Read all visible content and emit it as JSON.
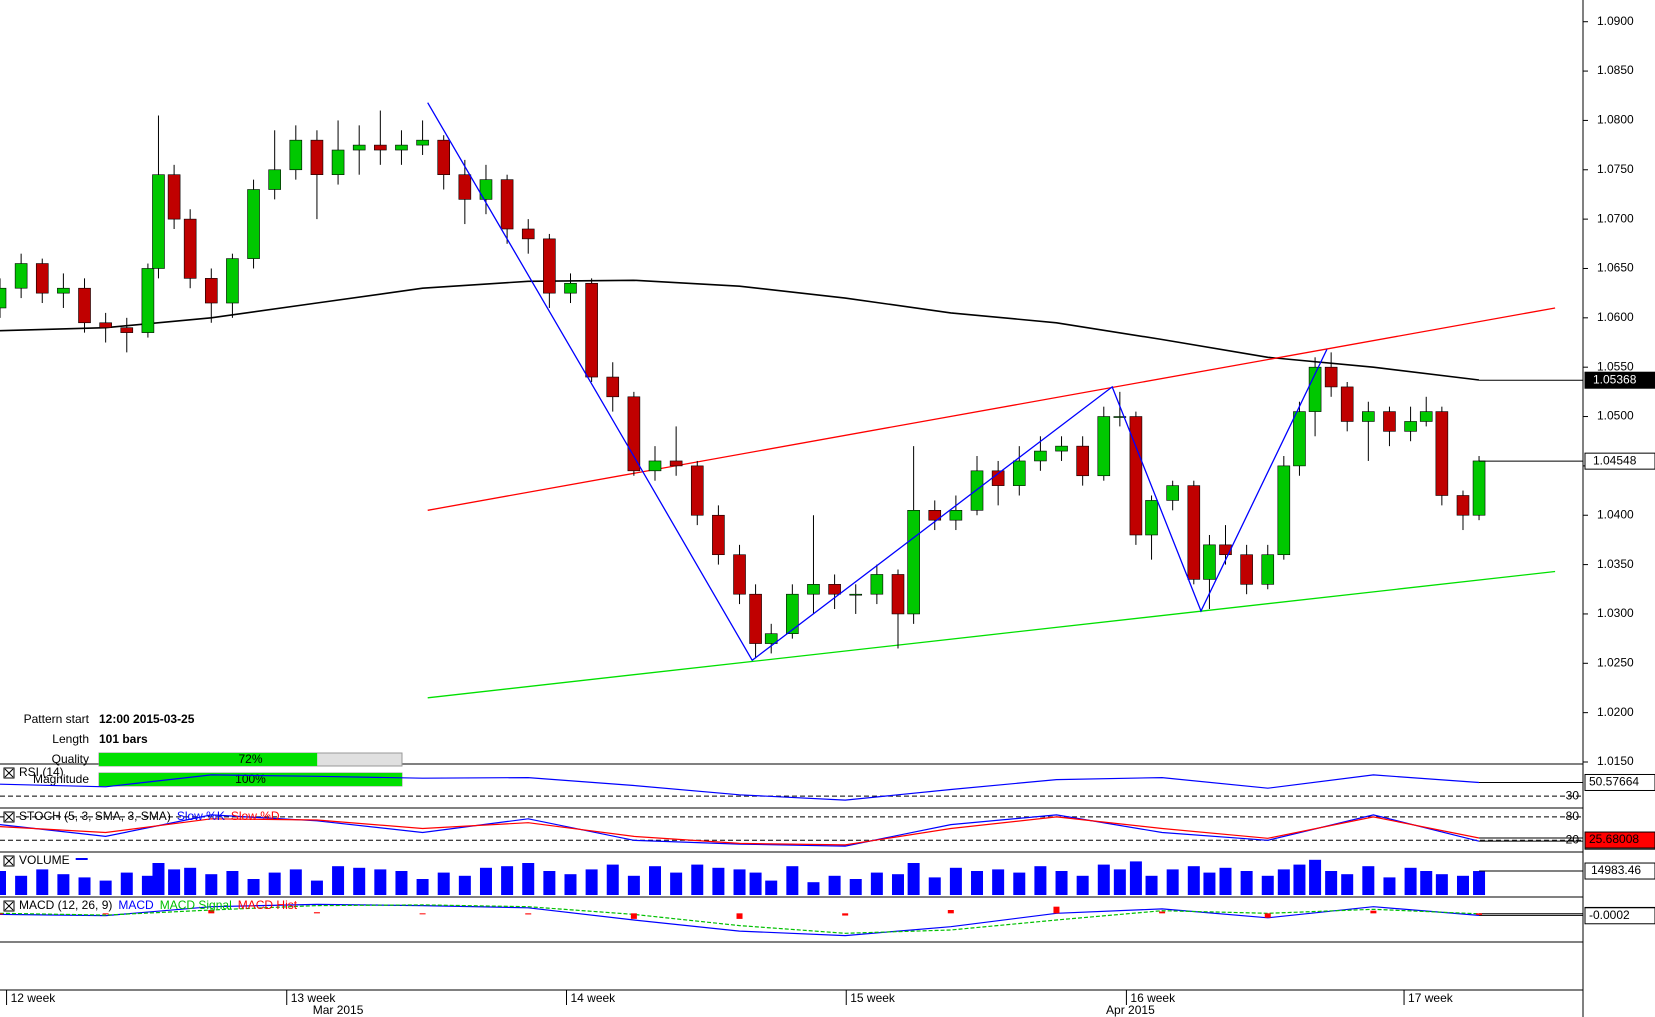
{
  "chart_data": {
    "type": "candlestick",
    "ylim": [
      1.015,
      1.0922
    ],
    "yticks": [
      {
        "value": 1.015,
        "label": "1.0150"
      },
      {
        "value": 1.02,
        "label": "1.0200"
      },
      {
        "value": 1.025,
        "label": "1.0250"
      },
      {
        "value": 1.03,
        "label": "1.0300"
      },
      {
        "value": 1.035,
        "label": "1.0350"
      },
      {
        "value": 1.04,
        "label": "1.0400"
      },
      {
        "value": 1.045,
        "label": "1.0450"
      },
      {
        "value": 1.05,
        "label": "1.0500"
      },
      {
        "value": 1.055,
        "label": "1.0550"
      },
      {
        "value": 1.06,
        "label": "1.0600"
      },
      {
        "value": 1.065,
        "label": "1.0650"
      },
      {
        "value": 1.07,
        "label": "1.0700"
      },
      {
        "value": 1.075,
        "label": "1.0750"
      },
      {
        "value": 1.08,
        "label": "1.0800"
      },
      {
        "value": 1.085,
        "label": "1.0850"
      },
      {
        "value": 1.09,
        "label": "1.0900"
      }
    ],
    "xlim": [
      0,
      187.3
    ],
    "x": [
      0,
      2.5,
      5,
      7.5,
      10,
      12.5,
      15,
      17.5,
      18.75,
      20.6,
      22.5,
      25,
      27.5,
      30,
      32.5,
      35,
      37.5,
      40,
      42.5,
      45,
      47.5,
      50,
      52.5,
      55,
      57.5,
      60,
      62.5,
      65,
      67.5,
      70,
      72.5,
      75,
      77.5,
      80,
      82.5,
      85,
      87.5,
      89.4,
      91.25,
      93.75,
      96.25,
      98.75,
      101.25,
      103.75,
      106.25,
      108.1,
      110.6,
      113.1,
      115.6,
      118.1,
      120.6,
      123.1,
      125.6,
      128.1,
      130.6,
      132.5,
      134.4,
      136.25,
      138.75,
      141.25,
      143.1,
      145,
      147.5,
      150,
      151.9,
      153.75,
      155.6,
      157.5,
      159.4,
      161.9,
      164.4,
      166.9,
      168.75,
      170.6,
      173.1,
      175
    ],
    "candles": [
      [
        1.061,
        1.064,
        1.06,
        1.063
      ],
      [
        1.063,
        1.0665,
        1.062,
        1.0655
      ],
      [
        1.0655,
        1.066,
        1.0615,
        1.0625
      ],
      [
        1.0625,
        1.0645,
        1.061,
        1.063
      ],
      [
        1.063,
        1.064,
        1.0585,
        1.0595
      ],
      [
        1.0595,
        1.0605,
        1.0575,
        1.059
      ],
      [
        1.059,
        1.06,
        1.0565,
        1.0585
      ],
      [
        1.0585,
        1.0655,
        1.058,
        1.065
      ],
      [
        1.065,
        1.0805,
        1.064,
        1.0745
      ],
      [
        1.0745,
        1.0755,
        1.069,
        1.07
      ],
      [
        1.07,
        1.071,
        1.063,
        1.064
      ],
      [
        1.064,
        1.065,
        1.0595,
        1.0615
      ],
      [
        1.0615,
        1.0665,
        1.06,
        1.066
      ],
      [
        1.066,
        1.074,
        1.065,
        1.073
      ],
      [
        1.073,
        1.079,
        1.072,
        1.075
      ],
      [
        1.075,
        1.0795,
        1.074,
        1.078
      ],
      [
        1.078,
        1.079,
        1.07,
        1.0745
      ],
      [
        1.0745,
        1.08,
        1.0735,
        1.077
      ],
      [
        1.077,
        1.0795,
        1.0745,
        1.0775
      ],
      [
        1.0775,
        1.081,
        1.0755,
        1.077
      ],
      [
        1.077,
        1.079,
        1.0755,
        1.0775
      ],
      [
        1.0775,
        1.08,
        1.0765,
        1.078
      ],
      [
        1.078,
        1.0785,
        1.073,
        1.0745
      ],
      [
        1.0745,
        1.076,
        1.0695,
        1.072
      ],
      [
        1.072,
        1.0755,
        1.0705,
        1.074
      ],
      [
        1.074,
        1.0745,
        1.0675,
        1.069
      ],
      [
        1.069,
        1.07,
        1.0665,
        1.068
      ],
      [
        1.068,
        1.0685,
        1.061,
        1.0625
      ],
      [
        1.0625,
        1.0645,
        1.0615,
        1.0635
      ],
      [
        1.0635,
        1.064,
        1.0535,
        1.054
      ],
      [
        1.054,
        1.0555,
        1.0505,
        1.052
      ],
      [
        1.052,
        1.0525,
        1.044,
        1.0445
      ],
      [
        1.0445,
        1.047,
        1.0435,
        1.0455
      ],
      [
        1.0455,
        1.049,
        1.044,
        1.045
      ],
      [
        1.045,
        1.0455,
        1.039,
        1.04
      ],
      [
        1.04,
        1.041,
        1.035,
        1.036
      ],
      [
        1.036,
        1.037,
        1.031,
        1.032
      ],
      [
        1.032,
        1.033,
        1.0255,
        1.027
      ],
      [
        1.027,
        1.029,
        1.026,
        1.028
      ],
      [
        1.028,
        1.033,
        1.0275,
        1.032
      ],
      [
        1.032,
        1.04,
        1.03,
        1.033
      ],
      [
        1.033,
        1.034,
        1.0305,
        1.032
      ],
      [
        1.032,
        1.033,
        1.03,
        1.032
      ],
      [
        1.032,
        1.035,
        1.031,
        1.034
      ],
      [
        1.034,
        1.0345,
        1.0265,
        1.03
      ],
      [
        1.03,
        1.047,
        1.029,
        1.0405
      ],
      [
        1.0405,
        1.0415,
        1.0385,
        1.0395
      ],
      [
        1.0395,
        1.042,
        1.0385,
        1.0405
      ],
      [
        1.0405,
        1.046,
        1.04,
        1.0445
      ],
      [
        1.0445,
        1.0455,
        1.041,
        1.043
      ],
      [
        1.043,
        1.047,
        1.042,
        1.0455
      ],
      [
        1.0455,
        1.048,
        1.0445,
        1.0465
      ],
      [
        1.0465,
        1.048,
        1.0455,
        1.047
      ],
      [
        1.047,
        1.048,
        1.043,
        1.044
      ],
      [
        1.044,
        1.051,
        1.0435,
        1.05
      ],
      [
        1.05,
        1.0525,
        1.049,
        1.05
      ],
      [
        1.05,
        1.0505,
        1.037,
        1.038
      ],
      [
        1.038,
        1.042,
        1.0355,
        1.0415
      ],
      [
        1.0415,
        1.0435,
        1.0405,
        1.043
      ],
      [
        1.043,
        1.0435,
        1.033,
        1.0335
      ],
      [
        1.0335,
        1.038,
        1.0305,
        1.037
      ],
      [
        1.037,
        1.039,
        1.035,
        1.036
      ],
      [
        1.036,
        1.037,
        1.032,
        1.033
      ],
      [
        1.033,
        1.037,
        1.0325,
        1.036
      ],
      [
        1.036,
        1.046,
        1.0355,
        1.045
      ],
      [
        1.045,
        1.0515,
        1.044,
        1.0505
      ],
      [
        1.0505,
        1.056,
        1.048,
        1.055
      ],
      [
        1.055,
        1.0565,
        1.052,
        1.053
      ],
      [
        1.053,
        1.0535,
        1.0485,
        1.0495
      ],
      [
        1.0495,
        1.0515,
        1.0455,
        1.0505
      ],
      [
        1.0505,
        1.051,
        1.047,
        1.0485
      ],
      [
        1.0485,
        1.051,
        1.0475,
        1.0495
      ],
      [
        1.0495,
        1.052,
        1.049,
        1.0505
      ],
      [
        1.0505,
        1.051,
        1.041,
        1.042
      ],
      [
        1.042,
        1.0425,
        1.0385,
        1.04
      ],
      [
        1.04,
        1.046,
        1.0395,
        1.0455
      ]
    ],
    "up_color": "#00c800",
    "down_color": "#c00000",
    "moving_average": {
      "color": "#000000",
      "x": [
        0,
        12.5,
        25,
        37.5,
        50,
        62.5,
        75,
        87.5,
        100,
        112.5,
        125,
        137.5,
        150,
        162.5,
        175
      ],
      "values": [
        1.0587,
        1.059,
        1.06,
        1.0615,
        1.063,
        1.0637,
        1.0638,
        1.0632,
        1.062,
        1.0605,
        1.0595,
        1.0578,
        1.056,
        1.055,
        1.0537
      ]
    },
    "upper_line": {
      "color": "#ff0000",
      "x": [
        50.6,
        184
      ],
      "values": [
        1.0405,
        1.061
      ]
    },
    "lower_line": {
      "color": "#00e000",
      "x": [
        50.6,
        184
      ],
      "values": [
        1.0215,
        1.0343
      ]
    },
    "zigzag": {
      "color": "#0000ff",
      "x": [
        50.6,
        76,
        89,
        131.6,
        142.1,
        157
      ],
      "values": [
        1.0818,
        1.0445,
        1.0253,
        1.053,
        1.0303,
        1.0568
      ]
    },
    "price_labels": [
      1.05368,
      1.04548
    ],
    "pattern": {
      "fields": [
        {
          "name": "Pattern start",
          "value": "12:00 2015-03-25"
        },
        {
          "name": "Length",
          "value": "101 bars"
        }
      ],
      "bars": [
        {
          "name": "Quality",
          "value": 72,
          "value_label": "72%",
          "color": "#00e000"
        },
        {
          "name": "Magnitude",
          "value": 100,
          "value_label": "100%",
          "color": "#00e000"
        }
      ]
    },
    "xticks": [
      {
        "value": 1.25,
        "label": "12 week"
      },
      {
        "value": 34.4,
        "label": "13 week"
      },
      {
        "value": 67.5,
        "label": "14 week"
      },
      {
        "value": 100.6,
        "label": "15 week"
      },
      {
        "value": 133.75,
        "label": "16 week"
      },
      {
        "value": 166.6,
        "label": "17 week"
      }
    ],
    "month_ticks": [
      {
        "value": 40,
        "label": "Mar 2015"
      },
      {
        "value": 133.75,
        "label": "Apr 2015"
      }
    ],
    "indicators": [
      {
        "type": "line",
        "title": "RSI (14)",
        "ylim": [
          15,
          74
        ],
        "levels": [
          30
        ],
        "x": [
          0,
          12.5,
          25,
          37.5,
          50,
          62.5,
          75,
          87.5,
          100,
          112.5,
          125,
          137.5,
          150,
          162.5,
          175
        ],
        "series": [
          {
            "color": "#0000ff",
            "values": [
              48,
              44,
              62,
              60,
              57,
              58,
              46,
              32,
              24,
              40,
              55,
              58,
              42,
              62,
              50.57664
            ]
          }
        ]
      },
      {
        "type": "line",
        "title": "STOCH (5, 3, SMA, 3, SMA)",
        "ylim": [
          -5,
          95
        ],
        "levels": [
          80,
          20
        ],
        "x": [
          0,
          12.5,
          25,
          37.5,
          50,
          62.5,
          75,
          87.5,
          100,
          112.5,
          125,
          137.5,
          150,
          162.5,
          175
        ],
        "series": [
          {
            "name": "Slow %K",
            "color": "#0000ff",
            "values": [
              60,
              30,
              85,
              70,
              40,
              75,
              20,
              10,
              5,
              60,
              85,
              40,
              20,
              85,
              17.64411
            ]
          },
          {
            "name": "Slow %D",
            "color": "#ff0000",
            "values": [
              55,
              40,
              75,
              72,
              50,
              65,
              30,
              12,
              8,
              50,
              80,
              50,
              25,
              80,
              25.68008
            ]
          }
        ]
      },
      {
        "type": "bar",
        "title": "VOLUME",
        "ylim": [
          0,
          25000
        ],
        "color": "#0000ff",
        "values": [
          15000,
          12000,
          16000,
          13000,
          11000,
          9000,
          14000,
          12000,
          20000,
          16000,
          17000,
          13000,
          15000,
          10000,
          14000,
          16000,
          9000,
          18000,
          17000,
          16000,
          15000,
          10000,
          14000,
          12000,
          17000,
          18000,
          20000,
          15000,
          13000,
          16000,
          19000,
          12000,
          18000,
          14000,
          19000,
          17000,
          16000,
          14000,
          9000,
          18000,
          8000,
          12000,
          10000,
          14000,
          13000,
          20000,
          11000,
          17000,
          15000,
          16000,
          14000,
          18000,
          15000,
          12000,
          19000,
          16000,
          21000,
          12000,
          16000,
          18000,
          14000,
          17000,
          15000,
          12000,
          16000,
          19000,
          22000,
          15000,
          13000,
          18000,
          11000,
          17000,
          15000,
          13000,
          12000,
          14983.46
        ]
      },
      {
        "type": "line",
        "title": "MACD (12, 26, 9)",
        "ylim": [
          -0.012,
          0.006
        ],
        "x": [
          0,
          12.5,
          25,
          37.5,
          50,
          62.5,
          75,
          87.5,
          100,
          112.5,
          125,
          137.5,
          150,
          162.5,
          175
        ],
        "series": [
          {
            "name": "MACD",
            "color": "#0000ff",
            "values": [
              -0.0005,
              -0.001,
              0.003,
              0.004,
              0.0035,
              0.0025,
              -0.003,
              -0.008,
              -0.01,
              -0.006,
              0,
              0.002,
              -0.002,
              0.003,
              -0.0009428
            ]
          },
          {
            "name": "MACD Signal",
            "color": "#00c000",
            "dash": true,
            "values": [
              0,
              -0.0008,
              0.0015,
              0.0035,
              0.0038,
              0.003,
              -0.0005,
              -0.0055,
              -0.009,
              -0.0075,
              -0.003,
              0.0012,
              0,
              0.0018,
              -0.0002
            ]
          },
          {
            "name": "MACD Hist",
            "color": "#ff0000",
            "hist": true,
            "values": [
              -0.0005,
              -0.0002,
              0.0015,
              0.0005,
              -0.0003,
              -0.0005,
              -0.0025,
              -0.0025,
              -0.001,
              0.0015,
              0.003,
              0.0008,
              -0.002,
              0.0012,
              -0.0007
            ]
          }
        ]
      }
    ]
  }
}
